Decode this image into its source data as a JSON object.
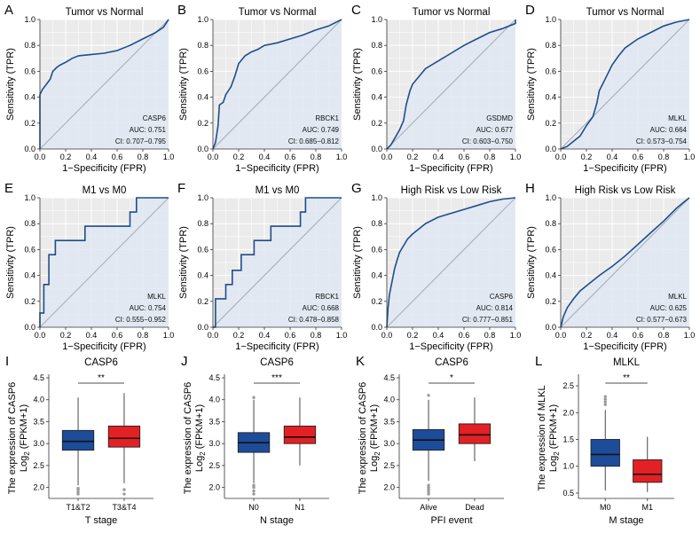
{
  "colors": {
    "roc_line": "#1f4e8c",
    "roc_fill": "#dfe7f2",
    "diag": "#a9b3c2",
    "grid": "#ffffff",
    "box_blue": "#1d4c9a",
    "box_red": "#e32024",
    "outlier": "#9a9a9a"
  },
  "roc_panels": [
    {
      "letter": "A",
      "title": "Tumor vs Normal",
      "xlabel": "1−Specificity (FPR)",
      "ylabel": "Sensitivity (TPR)",
      "gene": "CASP6",
      "auc": "AUC: 0.751",
      "ci": "CI: 0.707−0.795",
      "curve": [
        [
          0,
          0
        ],
        [
          0,
          0.42
        ],
        [
          0.02,
          0.46
        ],
        [
          0.05,
          0.5
        ],
        [
          0.08,
          0.54
        ],
        [
          0.1,
          0.6
        ],
        [
          0.13,
          0.63
        ],
        [
          0.16,
          0.65
        ],
        [
          0.2,
          0.67
        ],
        [
          0.25,
          0.7
        ],
        [
          0.3,
          0.72
        ],
        [
          0.4,
          0.73
        ],
        [
          0.5,
          0.74
        ],
        [
          0.6,
          0.76
        ],
        [
          0.7,
          0.8
        ],
        [
          0.8,
          0.85
        ],
        [
          0.9,
          0.9
        ],
        [
          0.96,
          0.94
        ],
        [
          1,
          1
        ]
      ]
    },
    {
      "letter": "B",
      "title": "Tumor vs Normal",
      "xlabel": "1−Specificity (FPR)",
      "ylabel": "Sensitivity (TPR)",
      "gene": "RBCK1",
      "auc": "AUC: 0.749",
      "ci": "CI: 0.685−0.812",
      "curve": [
        [
          0,
          0
        ],
        [
          0.02,
          0.05
        ],
        [
          0.04,
          0.18
        ],
        [
          0.05,
          0.34
        ],
        [
          0.08,
          0.36
        ],
        [
          0.1,
          0.42
        ],
        [
          0.14,
          0.48
        ],
        [
          0.17,
          0.56
        ],
        [
          0.2,
          0.66
        ],
        [
          0.25,
          0.72
        ],
        [
          0.3,
          0.75
        ],
        [
          0.35,
          0.77
        ],
        [
          0.4,
          0.8
        ],
        [
          0.5,
          0.82
        ],
        [
          0.6,
          0.85
        ],
        [
          0.7,
          0.88
        ],
        [
          0.8,
          0.92
        ],
        [
          0.9,
          0.95
        ],
        [
          1,
          1
        ]
      ]
    },
    {
      "letter": "C",
      "title": "Tumor vs Normal",
      "xlabel": "1−Specificity (FPR)",
      "ylabel": "Sensitivity (TPR)",
      "gene": "GSDMD",
      "auc": "AUC: 0.677",
      "ci": "CI: 0.603−0.750",
      "curve": [
        [
          0,
          0
        ],
        [
          0.03,
          0.03
        ],
        [
          0.06,
          0.08
        ],
        [
          0.1,
          0.15
        ],
        [
          0.13,
          0.22
        ],
        [
          0.15,
          0.34
        ],
        [
          0.18,
          0.45
        ],
        [
          0.2,
          0.5
        ],
        [
          0.25,
          0.56
        ],
        [
          0.3,
          0.62
        ],
        [
          0.4,
          0.68
        ],
        [
          0.5,
          0.74
        ],
        [
          0.6,
          0.8
        ],
        [
          0.7,
          0.85
        ],
        [
          0.8,
          0.9
        ],
        [
          0.9,
          0.93
        ],
        [
          1,
          0.97
        ],
        [
          1,
          1
        ]
      ]
    },
    {
      "letter": "D",
      "title": "Tumor vs Normal",
      "xlabel": "1−Specificity (FPR)",
      "ylabel": "Sensitivity (TPR)",
      "gene": "MLKL",
      "auc": "AUC: 0.664",
      "ci": "CI: 0.573−0.754",
      "curve": [
        [
          0,
          0
        ],
        [
          0.05,
          0.02
        ],
        [
          0.1,
          0.06
        ],
        [
          0.15,
          0.1
        ],
        [
          0.2,
          0.18
        ],
        [
          0.25,
          0.25
        ],
        [
          0.28,
          0.35
        ],
        [
          0.3,
          0.45
        ],
        [
          0.35,
          0.55
        ],
        [
          0.4,
          0.65
        ],
        [
          0.45,
          0.72
        ],
        [
          0.5,
          0.78
        ],
        [
          0.6,
          0.85
        ],
        [
          0.7,
          0.9
        ],
        [
          0.8,
          0.95
        ],
        [
          0.9,
          0.98
        ],
        [
          1,
          1
        ]
      ]
    },
    {
      "letter": "E",
      "title": "M1 vs M0",
      "xlabel": "1−Specificity (FPR)",
      "ylabel": "Sensitivity (TPR)",
      "gene": "MLKL",
      "auc": "AUC: 0.754",
      "ci": "CI: 0.555−0.952",
      "curve": [
        [
          0,
          0
        ],
        [
          0,
          0.11
        ],
        [
          0.03,
          0.11
        ],
        [
          0.03,
          0.33
        ],
        [
          0.07,
          0.33
        ],
        [
          0.07,
          0.56
        ],
        [
          0.12,
          0.56
        ],
        [
          0.12,
          0.67
        ],
        [
          0.35,
          0.67
        ],
        [
          0.35,
          0.78
        ],
        [
          0.7,
          0.78
        ],
        [
          0.7,
          0.89
        ],
        [
          0.75,
          0.89
        ],
        [
          0.75,
          1
        ],
        [
          1,
          1
        ]
      ]
    },
    {
      "letter": "F",
      "title": "M1 vs M0",
      "xlabel": "1−Specificity (FPR)",
      "ylabel": "Sensitivity (TPR)",
      "gene": "RBCK1",
      "auc": "AUC: 0.668",
      "ci": "CI: 0.478−0.858",
      "curve": [
        [
          0,
          0
        ],
        [
          0.02,
          0
        ],
        [
          0.02,
          0.22
        ],
        [
          0.1,
          0.22
        ],
        [
          0.1,
          0.33
        ],
        [
          0.15,
          0.33
        ],
        [
          0.15,
          0.44
        ],
        [
          0.22,
          0.44
        ],
        [
          0.22,
          0.56
        ],
        [
          0.32,
          0.56
        ],
        [
          0.32,
          0.67
        ],
        [
          0.45,
          0.67
        ],
        [
          0.45,
          0.78
        ],
        [
          0.68,
          0.78
        ],
        [
          0.68,
          0.89
        ],
        [
          0.72,
          0.89
        ],
        [
          0.72,
          1
        ],
        [
          1,
          1
        ]
      ]
    },
    {
      "letter": "G",
      "title": "High Risk vs Low Risk",
      "xlabel": "1−Specificity (FPR)",
      "ylabel": "Sensitivity (TPR)",
      "gene": "CASP6",
      "auc": "AUC: 0.814",
      "ci": "CI: 0.777−0.851",
      "curve": [
        [
          0,
          0
        ],
        [
          0.01,
          0.15
        ],
        [
          0.02,
          0.25
        ],
        [
          0.04,
          0.35
        ],
        [
          0.06,
          0.45
        ],
        [
          0.08,
          0.52
        ],
        [
          0.1,
          0.58
        ],
        [
          0.13,
          0.63
        ],
        [
          0.16,
          0.68
        ],
        [
          0.2,
          0.72
        ],
        [
          0.25,
          0.76
        ],
        [
          0.3,
          0.8
        ],
        [
          0.4,
          0.85
        ],
        [
          0.5,
          0.88
        ],
        [
          0.6,
          0.91
        ],
        [
          0.7,
          0.94
        ],
        [
          0.8,
          0.97
        ],
        [
          0.9,
          0.99
        ],
        [
          1,
          1
        ]
      ]
    },
    {
      "letter": "H",
      "title": "High Risk vs Low Risk",
      "xlabel": "1−Specificity (FPR)",
      "ylabel": "Sensitivity (TPR)",
      "gene": "MLKL",
      "auc": "AUC: 0.625",
      "ci": "CI: 0.577−0.673",
      "curve": [
        [
          0,
          0
        ],
        [
          0.02,
          0.08
        ],
        [
          0.05,
          0.15
        ],
        [
          0.1,
          0.22
        ],
        [
          0.15,
          0.28
        ],
        [
          0.2,
          0.32
        ],
        [
          0.3,
          0.4
        ],
        [
          0.4,
          0.47
        ],
        [
          0.5,
          0.55
        ],
        [
          0.6,
          0.64
        ],
        [
          0.7,
          0.73
        ],
        [
          0.8,
          0.82
        ],
        [
          0.9,
          0.92
        ],
        [
          0.95,
          0.96
        ],
        [
          1,
          1
        ]
      ]
    }
  ],
  "box_panels": [
    {
      "letter": "I",
      "title": "CASP6",
      "xlabel": "T stage",
      "ylabel_line1": "The expression of CASP6",
      "ylabel_line2": "Log",
      "ylabel_sub": "2",
      "ylabel_rest": " (FPKM+1)",
      "ylim": [
        1.75,
        4.5
      ],
      "yticks": [
        "2.0",
        "2.5",
        "3.0",
        "3.5",
        "4.0",
        "4.5"
      ],
      "sig": "**",
      "groups": [
        {
          "label": "T1&T2",
          "q1": 2.85,
          "median": 3.05,
          "q3": 3.3,
          "wlo": 2.05,
          "whi": 4.05,
          "outliers": [
            1.85,
            1.9,
            1.95,
            1.98
          ]
        },
        {
          "label": "T3&T4",
          "q1": 2.92,
          "median": 3.12,
          "q3": 3.4,
          "wlo": 2.1,
          "whi": 4.15,
          "outliers": [
            1.85,
            1.95
          ]
        }
      ]
    },
    {
      "letter": "J",
      "title": "CASP6",
      "xlabel": "N stage",
      "ylabel_line1": "The expression of CASP6",
      "ylabel_line2": "Log",
      "ylabel_sub": "2",
      "ylabel_rest": " (FPKM+1)",
      "ylim": [
        1.75,
        4.5
      ],
      "yticks": [
        "2.0",
        "2.5",
        "3.0",
        "3.5",
        "4.0",
        "4.5"
      ],
      "sig": "***",
      "groups": [
        {
          "label": "N0",
          "q1": 2.8,
          "median": 3.02,
          "q3": 3.25,
          "wlo": 2.1,
          "whi": 4.0,
          "outliers": [
            1.85,
            1.92,
            2.0,
            2.05,
            4.05
          ]
        },
        {
          "label": "N1",
          "q1": 3.0,
          "median": 3.15,
          "q3": 3.4,
          "wlo": 2.5,
          "whi": 4.05,
          "outliers": []
        }
      ]
    },
    {
      "letter": "K",
      "title": "CASP6",
      "xlabel": "PFI event",
      "ylabel_line1": "The expression of CASP6",
      "ylabel_line2": "Log",
      "ylabel_sub": "2",
      "ylabel_rest": " (FPKM+1)",
      "ylim": [
        1.75,
        4.5
      ],
      "yticks": [
        "2.0",
        "2.5",
        "3.0",
        "3.5",
        "4.0",
        "4.5"
      ],
      "sig": "*",
      "groups": [
        {
          "label": "Alive",
          "q1": 2.85,
          "median": 3.08,
          "q3": 3.32,
          "wlo": 2.15,
          "whi": 4.0,
          "outliers": [
            1.85,
            1.9,
            1.95,
            2.0,
            2.05,
            4.1
          ]
        },
        {
          "label": "Dead",
          "q1": 3.0,
          "median": 3.2,
          "q3": 3.45,
          "wlo": 2.6,
          "whi": 4.05,
          "outliers": []
        }
      ]
    },
    {
      "letter": "L",
      "title": "MLKL",
      "xlabel": "M stage",
      "ylabel_line1": "The expression of MLKL",
      "ylabel_line2": "Log",
      "ylabel_sub": "2",
      "ylabel_rest": " (FPKM+1)",
      "ylim": [
        0.4,
        2.65
      ],
      "yticks": [
        "0.5",
        "1.0",
        "1.5",
        "2.0",
        "2.5"
      ],
      "sig": "**",
      "groups": [
        {
          "label": "M0",
          "q1": 1.0,
          "median": 1.22,
          "q3": 1.5,
          "wlo": 0.55,
          "whi": 2.05,
          "outliers": [
            2.15,
            2.2,
            2.25,
            2.3
          ]
        },
        {
          "label": "M1",
          "q1": 0.7,
          "median": 0.85,
          "q3": 1.12,
          "wlo": 0.52,
          "whi": 1.55,
          "outliers": []
        }
      ]
    }
  ],
  "chart_data": [
    {
      "type": "line",
      "title": "Tumor vs Normal",
      "xlabel": "1−Specificity (FPR)",
      "ylabel": "Sensitivity (TPR)",
      "xlim": [
        0,
        1
      ],
      "ylim": [
        0,
        1
      ],
      "series": [
        {
          "name": "CASP6",
          "auc": 0.751,
          "ci": [
            0.707,
            0.795
          ]
        }
      ]
    },
    {
      "type": "line",
      "title": "Tumor vs Normal",
      "xlabel": "1−Specificity (FPR)",
      "ylabel": "Sensitivity (TPR)",
      "xlim": [
        0,
        1
      ],
      "ylim": [
        0,
        1
      ],
      "series": [
        {
          "name": "RBCK1",
          "auc": 0.749,
          "ci": [
            0.685,
            0.812
          ]
        }
      ]
    },
    {
      "type": "line",
      "title": "Tumor vs Normal",
      "xlabel": "1−Specificity (FPR)",
      "ylabel": "Sensitivity (TPR)",
      "xlim": [
        0,
        1
      ],
      "ylim": [
        0,
        1
      ],
      "series": [
        {
          "name": "GSDMD",
          "auc": 0.677,
          "ci": [
            0.603,
            0.75
          ]
        }
      ]
    },
    {
      "type": "line",
      "title": "Tumor vs Normal",
      "xlabel": "1−Specificity (FPR)",
      "ylabel": "Sensitivity (TPR)",
      "xlim": [
        0,
        1
      ],
      "ylim": [
        0,
        1
      ],
      "series": [
        {
          "name": "MLKL",
          "auc": 0.664,
          "ci": [
            0.573,
            0.754
          ]
        }
      ]
    },
    {
      "type": "line",
      "title": "M1 vs M0",
      "xlabel": "1−Specificity (FPR)",
      "ylabel": "Sensitivity (TPR)",
      "xlim": [
        0,
        1
      ],
      "ylim": [
        0,
        1
      ],
      "series": [
        {
          "name": "MLKL",
          "auc": 0.754,
          "ci": [
            0.555,
            0.952
          ]
        }
      ]
    },
    {
      "type": "line",
      "title": "M1 vs M0",
      "xlabel": "1−Specificity (FPR)",
      "ylabel": "Sensitivity (TPR)",
      "xlim": [
        0,
        1
      ],
      "ylim": [
        0,
        1
      ],
      "series": [
        {
          "name": "RBCK1",
          "auc": 0.668,
          "ci": [
            0.478,
            0.858
          ]
        }
      ]
    },
    {
      "type": "line",
      "title": "High Risk vs Low Risk",
      "xlabel": "1−Specificity (FPR)",
      "ylabel": "Sensitivity (TPR)",
      "xlim": [
        0,
        1
      ],
      "ylim": [
        0,
        1
      ],
      "series": [
        {
          "name": "CASP6",
          "auc": 0.814,
          "ci": [
            0.777,
            0.851
          ]
        }
      ]
    },
    {
      "type": "line",
      "title": "High Risk vs Low Risk",
      "xlabel": "1−Specificity (FPR)",
      "ylabel": "Sensitivity (TPR)",
      "xlim": [
        0,
        1
      ],
      "ylim": [
        0,
        1
      ],
      "series": [
        {
          "name": "MLKL",
          "auc": 0.625,
          "ci": [
            0.577,
            0.673
          ]
        }
      ]
    },
    {
      "type": "box",
      "title": "CASP6",
      "xlabel": "T stage",
      "categories": [
        "T1&T2",
        "T3&T4"
      ],
      "significance": "**"
    },
    {
      "type": "box",
      "title": "CASP6",
      "xlabel": "N stage",
      "categories": [
        "N0",
        "N1"
      ],
      "significance": "***"
    },
    {
      "type": "box",
      "title": "CASP6",
      "xlabel": "PFI event",
      "categories": [
        "Alive",
        "Dead"
      ],
      "significance": "*"
    },
    {
      "type": "box",
      "title": "MLKL",
      "xlabel": "M stage",
      "categories": [
        "M0",
        "M1"
      ],
      "significance": "**"
    }
  ]
}
